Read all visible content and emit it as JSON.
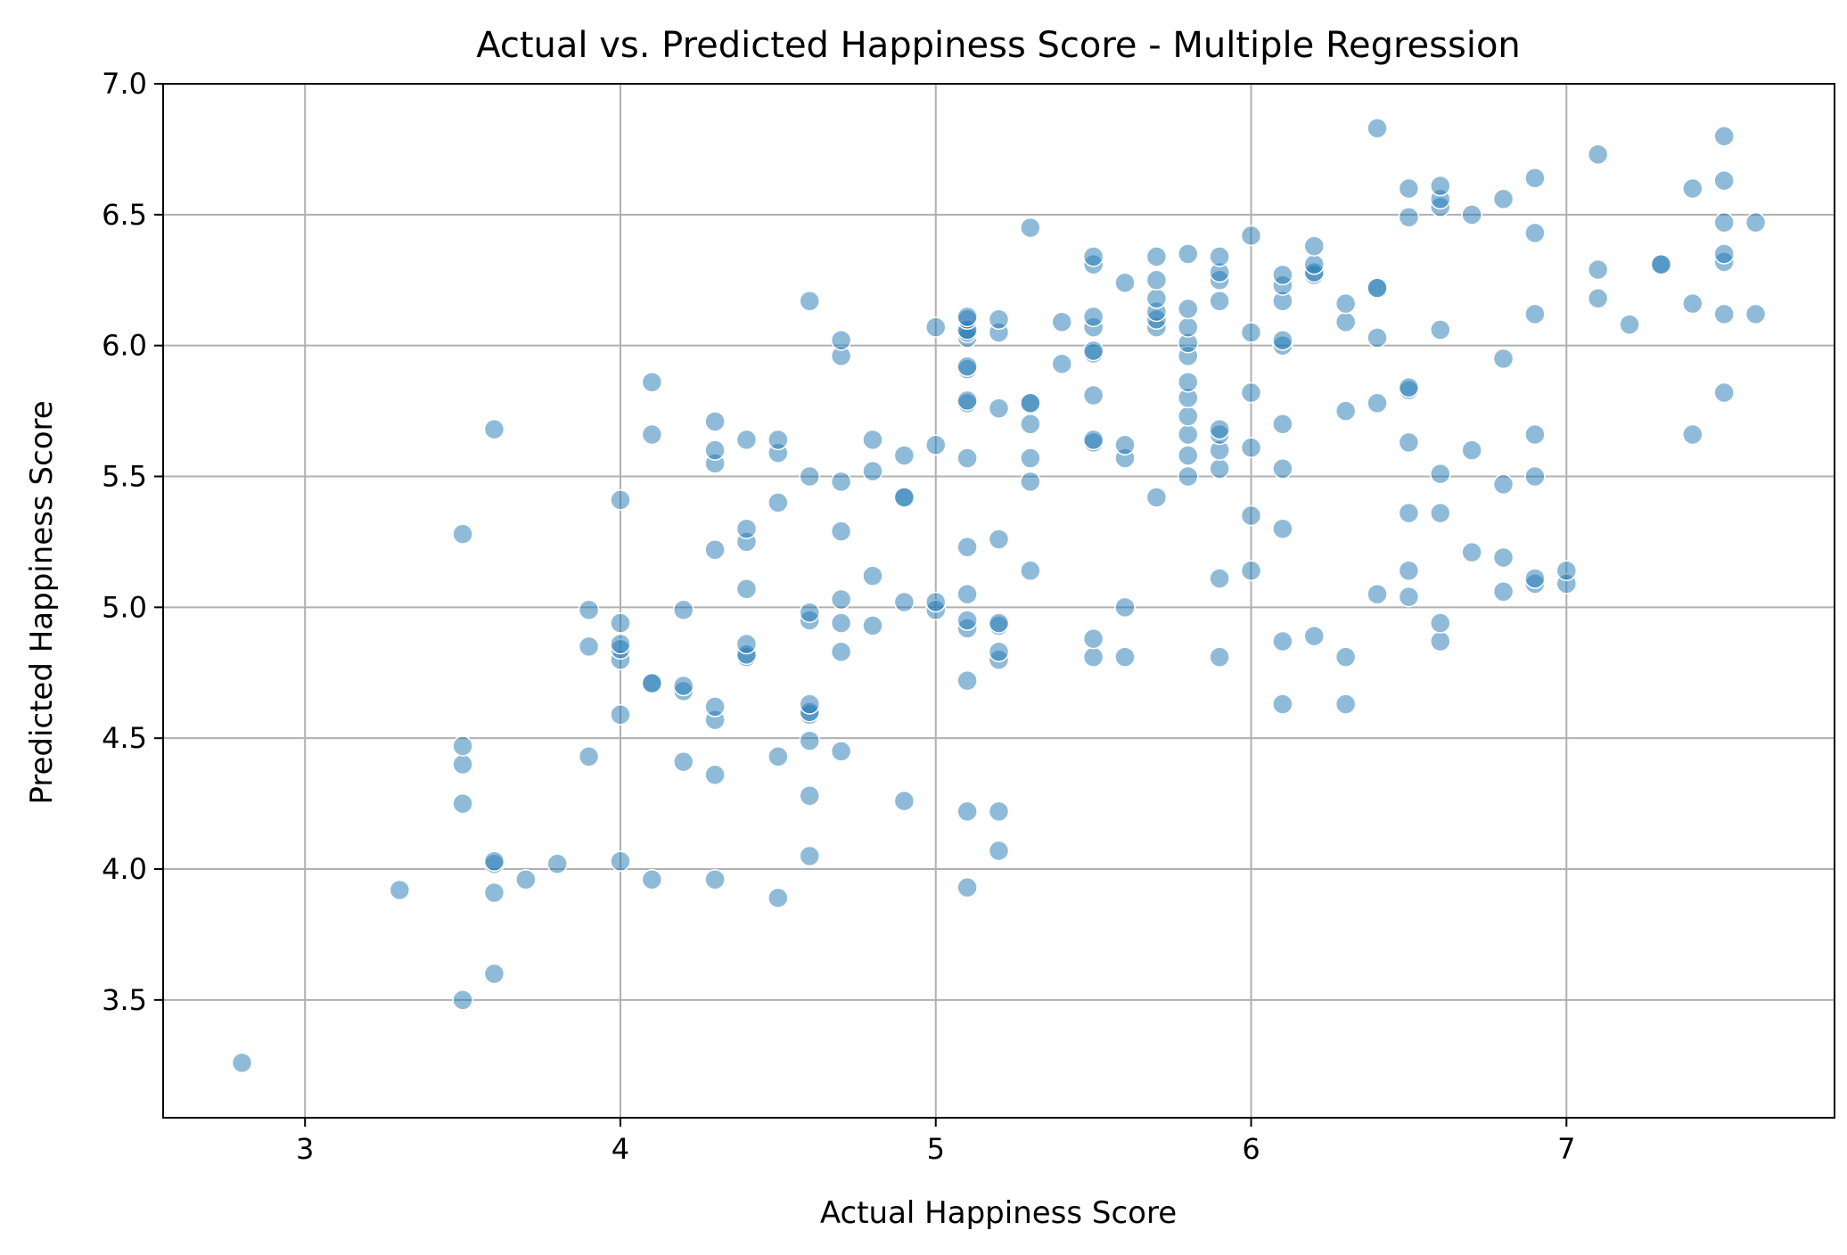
{
  "chart_data": {
    "type": "scatter",
    "title": "Actual vs. Predicted Happiness Score - Multiple Regression",
    "xlabel": "Actual Happiness Score",
    "ylabel": "Predicted Happiness Score",
    "xlim": [
      2.55,
      7.85
    ],
    "ylim": [
      3.05,
      7.0
    ],
    "xticks": [
      3,
      4,
      5,
      6,
      7
    ],
    "xtick_labels": [
      "3",
      "4",
      "5",
      "6",
      "7"
    ],
    "yticks": [
      3.5,
      4.0,
      4.5,
      5.0,
      5.5,
      6.0,
      6.5,
      7.0
    ],
    "ytick_labels": [
      "3.5",
      "4.0",
      "4.5",
      "5.0",
      "5.5",
      "6.0",
      "6.5",
      "7.0"
    ],
    "grid": true,
    "marker_color": "#1f77b4",
    "marker_alpha": 0.5,
    "marker_edge_color": "#ffffff",
    "points": [
      [
        2.8,
        3.26
      ],
      [
        3.3,
        3.92
      ],
      [
        3.5,
        3.5
      ],
      [
        3.5,
        4.25
      ],
      [
        3.5,
        4.4
      ],
      [
        3.5,
        4.47
      ],
      [
        3.5,
        5.28
      ],
      [
        3.6,
        3.6
      ],
      [
        3.6,
        3.91
      ],
      [
        3.6,
        4.02
      ],
      [
        3.6,
        4.03
      ],
      [
        3.6,
        5.68
      ],
      [
        3.7,
        3.96
      ],
      [
        3.8,
        4.02
      ],
      [
        3.9,
        4.43
      ],
      [
        3.9,
        4.85
      ],
      [
        3.9,
        4.99
      ],
      [
        4.0,
        4.03
      ],
      [
        4.0,
        4.59
      ],
      [
        4.0,
        4.8
      ],
      [
        4.0,
        4.84
      ],
      [
        4.0,
        4.86
      ],
      [
        4.0,
        4.94
      ],
      [
        4.0,
        5.41
      ],
      [
        4.1,
        3.96
      ],
      [
        4.1,
        4.71
      ],
      [
        4.1,
        4.71
      ],
      [
        4.1,
        5.66
      ],
      [
        4.1,
        5.86
      ],
      [
        4.2,
        4.41
      ],
      [
        4.2,
        4.68
      ],
      [
        4.2,
        4.7
      ],
      [
        4.2,
        4.99
      ],
      [
        4.3,
        3.96
      ],
      [
        4.3,
        4.36
      ],
      [
        4.3,
        4.57
      ],
      [
        4.3,
        4.62
      ],
      [
        4.3,
        5.22
      ],
      [
        4.3,
        5.55
      ],
      [
        4.3,
        5.6
      ],
      [
        4.3,
        5.71
      ],
      [
        4.4,
        4.81
      ],
      [
        4.4,
        4.82
      ],
      [
        4.4,
        4.86
      ],
      [
        4.4,
        5.07
      ],
      [
        4.4,
        5.25
      ],
      [
        4.4,
        5.3
      ],
      [
        4.4,
        5.64
      ],
      [
        4.5,
        3.89
      ],
      [
        4.5,
        4.43
      ],
      [
        4.5,
        5.4
      ],
      [
        4.5,
        5.59
      ],
      [
        4.5,
        5.64
      ],
      [
        4.6,
        4.05
      ],
      [
        4.6,
        4.28
      ],
      [
        4.6,
        4.49
      ],
      [
        4.6,
        4.59
      ],
      [
        4.6,
        4.6
      ],
      [
        4.6,
        4.63
      ],
      [
        4.6,
        4.95
      ],
      [
        4.6,
        4.98
      ],
      [
        4.6,
        5.5
      ],
      [
        4.6,
        6.17
      ],
      [
        4.7,
        4.45
      ],
      [
        4.7,
        4.83
      ],
      [
        4.7,
        4.94
      ],
      [
        4.7,
        5.03
      ],
      [
        4.7,
        5.29
      ],
      [
        4.7,
        5.48
      ],
      [
        4.7,
        5.96
      ],
      [
        4.7,
        6.02
      ],
      [
        4.8,
        4.93
      ],
      [
        4.8,
        5.12
      ],
      [
        4.8,
        5.52
      ],
      [
        4.8,
        5.64
      ],
      [
        4.9,
        4.26
      ],
      [
        4.9,
        5.02
      ],
      [
        4.9,
        5.42
      ],
      [
        4.9,
        5.42
      ],
      [
        4.9,
        5.58
      ],
      [
        5.0,
        4.99
      ],
      [
        5.0,
        5.02
      ],
      [
        5.0,
        5.62
      ],
      [
        5.0,
        6.07
      ],
      [
        5.1,
        3.93
      ],
      [
        5.1,
        4.22
      ],
      [
        5.1,
        4.72
      ],
      [
        5.1,
        4.92
      ],
      [
        5.1,
        4.95
      ],
      [
        5.1,
        5.05
      ],
      [
        5.1,
        5.23
      ],
      [
        5.1,
        5.57
      ],
      [
        5.1,
        5.78
      ],
      [
        5.1,
        5.79
      ],
      [
        5.1,
        5.91
      ],
      [
        5.1,
        5.92
      ],
      [
        5.1,
        6.03
      ],
      [
        5.1,
        6.05
      ],
      [
        5.1,
        6.06
      ],
      [
        5.1,
        6.1
      ],
      [
        5.1,
        6.11
      ],
      [
        5.2,
        4.07
      ],
      [
        5.2,
        4.22
      ],
      [
        5.2,
        4.8
      ],
      [
        5.2,
        4.83
      ],
      [
        5.2,
        4.93
      ],
      [
        5.2,
        4.94
      ],
      [
        5.2,
        5.26
      ],
      [
        5.2,
        5.76
      ],
      [
        5.2,
        6.05
      ],
      [
        5.2,
        6.1
      ],
      [
        5.3,
        5.14
      ],
      [
        5.3,
        5.48
      ],
      [
        5.3,
        5.57
      ],
      [
        5.3,
        5.7
      ],
      [
        5.3,
        5.78
      ],
      [
        5.3,
        5.78
      ],
      [
        5.3,
        6.45
      ],
      [
        5.4,
        5.93
      ],
      [
        5.4,
        6.09
      ],
      [
        5.5,
        4.81
      ],
      [
        5.5,
        4.88
      ],
      [
        5.5,
        5.63
      ],
      [
        5.5,
        5.64
      ],
      [
        5.5,
        5.81
      ],
      [
        5.5,
        5.97
      ],
      [
        5.5,
        5.98
      ],
      [
        5.5,
        6.07
      ],
      [
        5.5,
        6.11
      ],
      [
        5.5,
        6.31
      ],
      [
        5.5,
        6.34
      ],
      [
        5.6,
        4.81
      ],
      [
        5.6,
        5.0
      ],
      [
        5.6,
        5.57
      ],
      [
        5.6,
        5.62
      ],
      [
        5.6,
        6.24
      ],
      [
        5.7,
        5.42
      ],
      [
        5.7,
        6.07
      ],
      [
        5.7,
        6.1
      ],
      [
        5.7,
        6.13
      ],
      [
        5.7,
        6.18
      ],
      [
        5.7,
        6.25
      ],
      [
        5.7,
        6.34
      ],
      [
        5.8,
        5.5
      ],
      [
        5.8,
        5.58
      ],
      [
        5.8,
        5.66
      ],
      [
        5.8,
        5.73
      ],
      [
        5.8,
        5.8
      ],
      [
        5.8,
        5.86
      ],
      [
        5.8,
        5.96
      ],
      [
        5.8,
        6.01
      ],
      [
        5.8,
        6.07
      ],
      [
        5.8,
        6.14
      ],
      [
        5.8,
        6.35
      ],
      [
        5.9,
        4.81
      ],
      [
        5.9,
        5.11
      ],
      [
        5.9,
        5.53
      ],
      [
        5.9,
        5.6
      ],
      [
        5.9,
        5.66
      ],
      [
        5.9,
        5.68
      ],
      [
        5.9,
        6.17
      ],
      [
        5.9,
        6.25
      ],
      [
        5.9,
        6.28
      ],
      [
        5.9,
        6.34
      ],
      [
        6.0,
        5.14
      ],
      [
        6.0,
        5.35
      ],
      [
        6.0,
        5.61
      ],
      [
        6.0,
        5.82
      ],
      [
        6.0,
        6.05
      ],
      [
        6.0,
        6.42
      ],
      [
        6.1,
        4.63
      ],
      [
        6.1,
        4.87
      ],
      [
        6.1,
        5.3
      ],
      [
        6.1,
        5.53
      ],
      [
        6.1,
        5.7
      ],
      [
        6.1,
        6.0
      ],
      [
        6.1,
        6.02
      ],
      [
        6.1,
        6.17
      ],
      [
        6.1,
        6.23
      ],
      [
        6.1,
        6.27
      ],
      [
        6.2,
        4.89
      ],
      [
        6.2,
        6.27
      ],
      [
        6.2,
        6.28
      ],
      [
        6.2,
        6.31
      ],
      [
        6.2,
        6.38
      ],
      [
        6.3,
        4.63
      ],
      [
        6.3,
        4.81
      ],
      [
        6.3,
        5.75
      ],
      [
        6.3,
        6.09
      ],
      [
        6.3,
        6.16
      ],
      [
        6.4,
        5.05
      ],
      [
        6.4,
        5.78
      ],
      [
        6.4,
        6.03
      ],
      [
        6.4,
        6.22
      ],
      [
        6.4,
        6.22
      ],
      [
        6.4,
        6.83
      ],
      [
        6.5,
        5.04
      ],
      [
        6.5,
        5.14
      ],
      [
        6.5,
        5.36
      ],
      [
        6.5,
        5.63
      ],
      [
        6.5,
        5.83
      ],
      [
        6.5,
        5.84
      ],
      [
        6.5,
        6.49
      ],
      [
        6.5,
        6.6
      ],
      [
        6.6,
        4.87
      ],
      [
        6.6,
        4.94
      ],
      [
        6.6,
        5.36
      ],
      [
        6.6,
        5.51
      ],
      [
        6.6,
        6.06
      ],
      [
        6.6,
        6.53
      ],
      [
        6.6,
        6.56
      ],
      [
        6.6,
        6.61
      ],
      [
        6.7,
        5.21
      ],
      [
        6.7,
        5.6
      ],
      [
        6.7,
        6.5
      ],
      [
        6.8,
        5.06
      ],
      [
        6.8,
        5.19
      ],
      [
        6.8,
        5.47
      ],
      [
        6.8,
        5.95
      ],
      [
        6.8,
        6.56
      ],
      [
        6.9,
        5.09
      ],
      [
        6.9,
        5.11
      ],
      [
        6.9,
        5.5
      ],
      [
        6.9,
        5.66
      ],
      [
        6.9,
        6.12
      ],
      [
        6.9,
        6.43
      ],
      [
        6.9,
        6.64
      ],
      [
        7.0,
        5.09
      ],
      [
        7.0,
        5.14
      ],
      [
        7.1,
        6.18
      ],
      [
        7.1,
        6.29
      ],
      [
        7.1,
        6.73
      ],
      [
        7.2,
        6.08
      ],
      [
        7.3,
        6.31
      ],
      [
        7.3,
        6.31
      ],
      [
        7.4,
        5.66
      ],
      [
        7.4,
        6.16
      ],
      [
        7.4,
        6.6
      ],
      [
        7.5,
        5.82
      ],
      [
        7.5,
        6.12
      ],
      [
        7.5,
        6.32
      ],
      [
        7.5,
        6.35
      ],
      [
        7.5,
        6.47
      ],
      [
        7.5,
        6.63
      ],
      [
        7.5,
        6.8
      ],
      [
        7.6,
        6.12
      ],
      [
        7.6,
        6.47
      ]
    ]
  }
}
